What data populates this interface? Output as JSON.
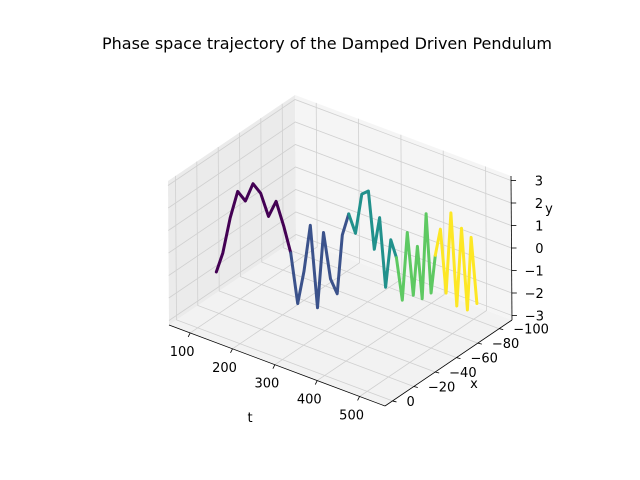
{
  "chart_data": {
    "type": "line",
    "projection": "3d",
    "title": "Phase space trajectory of the Damped Driven Pendulum",
    "xlabel": "t",
    "ylabel": "x",
    "zlabel": "y",
    "t_ticks": [
      "100",
      "200",
      "300",
      "400",
      "500"
    ],
    "x_ticks": [
      "0",
      "−20",
      "−40",
      "−60",
      "−80",
      "−100"
    ],
    "y_ticks": [
      "3",
      "2",
      "1",
      "0",
      "−1",
      "−2",
      "−3"
    ],
    "t_range": [
      50,
      560
    ],
    "x_range": [
      -112,
      7
    ],
    "y_range": [
      -3.2,
      3.2
    ],
    "grid": true,
    "colormap": "viridis",
    "colors": [
      "#440154",
      "#3b528b",
      "#21918c",
      "#5ec962",
      "#fde725"
    ],
    "series": [
      {
        "t": [
          140,
          148,
          156,
          164,
          172,
          180,
          188,
          196,
          204,
          212,
          220
        ],
        "x": [
          -2,
          -5,
          -9,
          -13,
          -17,
          -21,
          -25,
          -29,
          -33,
          -37,
          -40
        ],
        "y": [
          -0.5,
          0.3,
          1.8,
          2.9,
          2.4,
          3.1,
          2.6,
          1.5,
          2.1,
          0.9,
          -0.3
        ]
      },
      {
        "t": [
          220,
          228,
          236,
          244,
          252,
          260,
          268,
          276,
          284,
          292
        ],
        "x": [
          -40,
          -43,
          -46,
          -49,
          -52,
          -55,
          -58,
          -61,
          -63,
          -66
        ],
        "y": [
          -0.3,
          -2.6,
          -1.2,
          0.8,
          -2.9,
          0.4,
          -1.7,
          -2.4,
          0.2,
          1.1
        ]
      },
      {
        "t": [
          292,
          300,
          308,
          316,
          324,
          332,
          340,
          348,
          356
        ],
        "x": [
          -66,
          -69,
          -72,
          -75,
          -77,
          -79,
          -81,
          -83,
          -85
        ],
        "y": [
          1.1,
          0.2,
          1.9,
          2.0,
          -0.6,
          0.8,
          -2.3,
          -0.2,
          -1.0
        ]
      },
      {
        "t": [
          356,
          364,
          372,
          380,
          388,
          396,
          404,
          412,
          420
        ],
        "x": [
          -85,
          -87,
          -89,
          -91,
          -92,
          -93,
          -94,
          -95,
          -96
        ],
        "y": [
          -1.0,
          -2.9,
          0.1,
          -2.7,
          -0.5,
          -2.8,
          1.0,
          -2.5,
          -0.8
        ]
      },
      {
        "t": [
          420,
          430,
          440,
          450,
          460,
          470,
          480,
          490,
          500
        ],
        "x": [
          -96,
          -97,
          -98,
          -99,
          -100,
          -101,
          -102,
          -102,
          -103
        ],
        "y": [
          -0.8,
          0.4,
          -2.4,
          1.2,
          -2.9,
          0.6,
          -3.0,
          0.3,
          -2.6
        ]
      }
    ]
  }
}
